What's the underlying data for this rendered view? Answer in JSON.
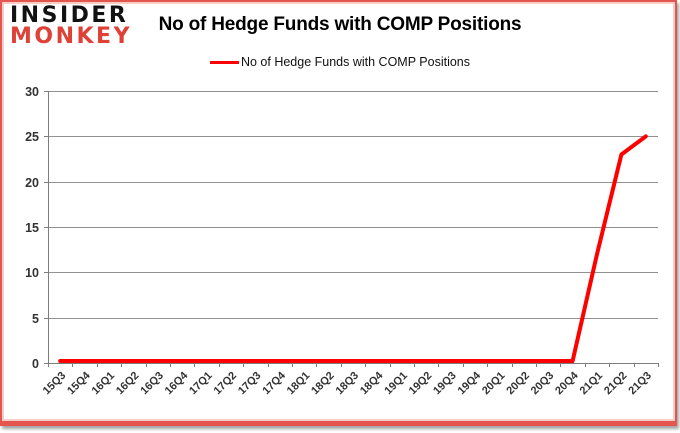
{
  "logo": {
    "line1": "INSIDER",
    "line2": "MONKEY",
    "black_color": "#121212",
    "red_color": "#df4137"
  },
  "header": {
    "title": "No of Hedge Funds with COMP Positions"
  },
  "legend": {
    "label": "No of Hedge Funds with COMP Positions",
    "swatch_color": "#ff0000"
  },
  "chart_data": {
    "type": "line",
    "title": "No of Hedge Funds with COMP Positions",
    "categories": [
      "15Q3",
      "15Q4",
      "16Q1",
      "16Q2",
      "16Q3",
      "16Q4",
      "17Q1",
      "17Q2",
      "17Q3",
      "17Q4",
      "18Q1",
      "18Q2",
      "18Q3",
      "18Q4",
      "19Q1",
      "19Q2",
      "19Q3",
      "19Q4",
      "20Q1",
      "20Q2",
      "20Q3",
      "20Q4",
      "21Q1",
      "21Q2",
      "21Q3"
    ],
    "series": [
      {
        "name": "No of Hedge Funds with COMP Positions",
        "color": "#ff0000",
        "values": [
          0,
          0,
          0,
          0,
          0,
          0,
          0,
          0,
          0,
          0,
          0,
          0,
          0,
          0,
          0,
          0,
          0,
          0,
          0,
          0,
          0,
          0,
          12,
          23,
          25
        ]
      }
    ],
    "xlabel": "",
    "ylabel": "",
    "ylim": [
      0,
      30
    ],
    "ytick_interval": 5,
    "yticks": [
      0,
      5,
      10,
      15,
      20,
      25,
      30
    ],
    "grid": true,
    "legend_position": "top",
    "colors": {
      "grid": "#919191",
      "axis": "#7d7d7d",
      "tick_label": "#333333"
    }
  }
}
